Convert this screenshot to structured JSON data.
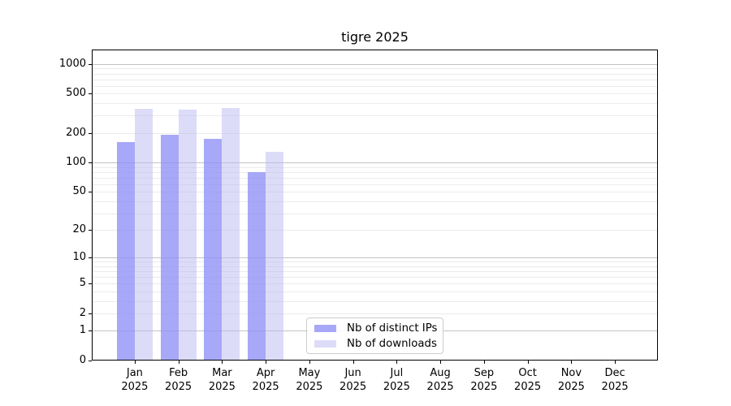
{
  "figure": {
    "title": "tigre 2025"
  },
  "colors": {
    "bar_distinct_ips": "rgba(143,143,246,0.78)",
    "bar_downloads": "rgba(185,185,241,0.5)",
    "grid_major": "#c3c3c3",
    "grid_minor": "#ebebeb",
    "axis_line": "#000000",
    "legend_border": "#cccccc"
  },
  "chart_data": {
    "type": "bar",
    "title": "tigre 2025",
    "yscale": "log1p",
    "ylim": [
      0,
      1400
    ],
    "y_ticks": [
      0,
      1,
      2,
      5,
      10,
      20,
      50,
      100,
      200,
      500,
      1000
    ],
    "grid": "major and minor horizontal gridlines",
    "legend_position": "lower center",
    "categories": [
      "Jan",
      "Feb",
      "Mar",
      "Apr",
      "May",
      "Jun",
      "Jul",
      "Aug",
      "Sep",
      "Oct",
      "Nov",
      "Dec"
    ],
    "year_label": "2025",
    "series": [
      {
        "name": "Nb of distinct IPs",
        "values": [
          160,
          190,
          175,
          80,
          null,
          null,
          null,
          null,
          null,
          null,
          null,
          null
        ]
      },
      {
        "name": "Nb of downloads",
        "values": [
          350,
          345,
          355,
          128,
          null,
          null,
          null,
          null,
          null,
          null,
          null,
          null
        ]
      }
    ]
  }
}
